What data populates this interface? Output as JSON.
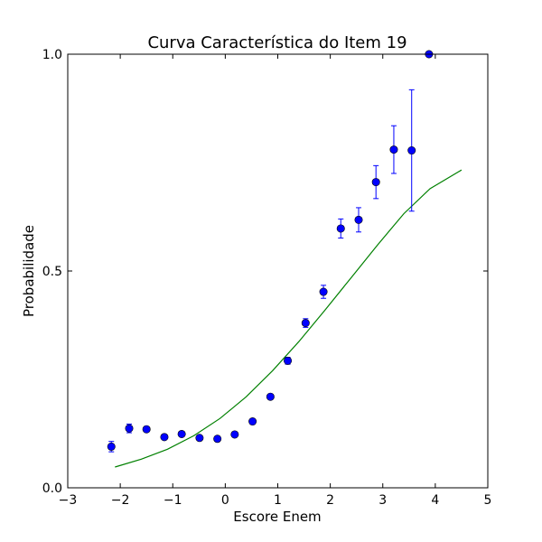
{
  "chart_data": {
    "type": "scatter",
    "title": "Curva Característica do Item 19",
    "xlabel": "Escore Enem",
    "ylabel": "Probabilidade",
    "xlim": [
      -3,
      5
    ],
    "ylim": [
      0,
      1
    ],
    "xticks": [
      -3,
      -2,
      -1,
      0,
      1,
      2,
      3,
      4,
      5
    ],
    "xtick_labels": [
      "−3",
      "−2",
      "−1",
      "0",
      "1",
      "2",
      "3",
      "4",
      "5"
    ],
    "yticks": [
      0,
      0.5,
      1
    ],
    "ytick_labels": [
      "0.0",
      "0.5",
      "1.0"
    ],
    "grid": false,
    "colors": {
      "points": "#0000ff",
      "curve": "#008000",
      "errorbars": "#0000ff"
    },
    "points": [
      {
        "x": -2.17,
        "y": 0.095,
        "err": 0.012
      },
      {
        "x": -1.83,
        "y": 0.137,
        "err": 0.01
      },
      {
        "x": -1.5,
        "y": 0.135,
        "err": 0.006
      },
      {
        "x": -1.16,
        "y": 0.117,
        "err": 0.005
      },
      {
        "x": -0.83,
        "y": 0.124,
        "err": 0.004
      },
      {
        "x": -0.49,
        "y": 0.115,
        "err": 0.004
      },
      {
        "x": -0.15,
        "y": 0.113,
        "err": 0.004
      },
      {
        "x": 0.18,
        "y": 0.123,
        "err": 0.004
      },
      {
        "x": 0.52,
        "y": 0.153,
        "err": 0.004
      },
      {
        "x": 0.86,
        "y": 0.21,
        "err": 0.005
      },
      {
        "x": 1.19,
        "y": 0.293,
        "err": 0.008
      },
      {
        "x": 1.53,
        "y": 0.38,
        "err": 0.01
      },
      {
        "x": 1.87,
        "y": 0.452,
        "err": 0.015
      },
      {
        "x": 2.2,
        "y": 0.598,
        "err": 0.022
      },
      {
        "x": 2.54,
        "y": 0.618,
        "err": 0.028
      },
      {
        "x": 2.87,
        "y": 0.705,
        "err": 0.038
      },
      {
        "x": 3.21,
        "y": 0.78,
        "err": 0.055
      },
      {
        "x": 3.55,
        "y": 0.778,
        "err": 0.14
      },
      {
        "x": 3.88,
        "y": 1.0,
        "err": 0.0
      }
    ],
    "curve": {
      "x": [
        -2.1,
        -1.6,
        -1.1,
        -0.6,
        -0.1,
        0.4,
        0.9,
        1.4,
        1.9,
        2.4,
        2.9,
        3.4,
        3.9,
        4.5
      ],
      "y": [
        0.048,
        0.066,
        0.089,
        0.12,
        0.16,
        0.21,
        0.27,
        0.337,
        0.41,
        0.485,
        0.56,
        0.632,
        0.69,
        0.733
      ]
    }
  }
}
